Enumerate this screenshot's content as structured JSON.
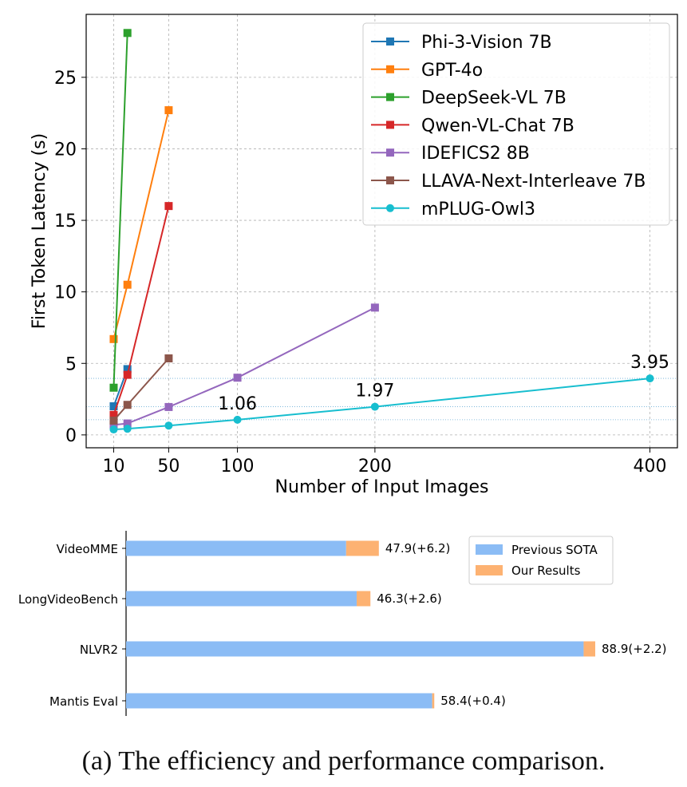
{
  "caption": "(a) The efficiency and performance comparison.",
  "colors": {
    "phi": "#1f77b4",
    "gpt": "#ff7f0e",
    "deepseek": "#2ca02c",
    "qwen": "#d62728",
    "idefics": "#9467bd",
    "llava": "#8c564b",
    "mplug": "#17becf",
    "prev": "#8bbcf5",
    "ours": "#fdb272",
    "refline": "#6baed6",
    "grid": "#b0b0b0"
  },
  "chart_data": [
    {
      "type": "line",
      "title": "",
      "xlabel": "Number of Input Images",
      "ylabel": "First Token Latency (s)",
      "xlim": [
        -10,
        420
      ],
      "ylim": [
        -0.9,
        29.4
      ],
      "xticks": [
        10,
        50,
        100,
        200,
        400
      ],
      "yticks": [
        0,
        5,
        10,
        15,
        20,
        25
      ],
      "grid": true,
      "legend_position": "top-right",
      "series": [
        {
          "name": "Phi-3-Vision 7B",
          "marker": "square",
          "color_key": "phi",
          "x": [
            10,
            20
          ],
          "y": [
            2.0,
            4.6
          ]
        },
        {
          "name": "GPT-4o",
          "marker": "square",
          "color_key": "gpt",
          "x": [
            10,
            20,
            50
          ],
          "y": [
            6.7,
            10.5,
            22.7
          ]
        },
        {
          "name": "DeepSeek-VL 7B",
          "marker": "square",
          "color_key": "deepseek",
          "x": [
            10,
            20
          ],
          "y": [
            3.3,
            28.1
          ]
        },
        {
          "name": "Qwen-VL-Chat 7B",
          "marker": "square",
          "color_key": "qwen",
          "x": [
            10,
            20,
            50
          ],
          "y": [
            1.4,
            4.2,
            16.0
          ]
        },
        {
          "name": "IDEFICS2 8B",
          "marker": "square",
          "color_key": "idefics",
          "x": [
            10,
            20,
            50,
            100,
            200
          ],
          "y": [
            0.7,
            0.8,
            1.95,
            4.0,
            8.9
          ]
        },
        {
          "name": "LLAVA-Next-Interleave 7B",
          "marker": "square",
          "color_key": "llava",
          "x": [
            10,
            20,
            50
          ],
          "y": [
            1.0,
            2.1,
            5.35
          ]
        },
        {
          "name": "mPLUG-Owl3",
          "marker": "circle",
          "color_key": "mplug",
          "x": [
            10,
            20,
            50,
            100,
            200,
            400
          ],
          "y": [
            0.38,
            0.43,
            0.65,
            1.06,
            1.97,
            3.95
          ]
        }
      ],
      "annotations": [
        {
          "text": "1.06",
          "x": 100,
          "y": 1.06
        },
        {
          "text": "1.97",
          "x": 200,
          "y": 1.97
        },
        {
          "text": "3.95",
          "x": 400,
          "y": 3.95
        }
      ],
      "reference_lines_y": [
        1.06,
        1.97,
        3.95
      ]
    },
    {
      "type": "bar",
      "orientation": "horizontal",
      "stacked": true,
      "categories": [
        "VideoMME",
        "LongVideoBench",
        "NLVR2",
        "Mantis Eval"
      ],
      "legend_position": "top-right",
      "xlim": [
        0,
        95
      ],
      "series": [
        {
          "name": "Previous SOTA",
          "color_key": "prev",
          "values": [
            41.7,
            43.7,
            86.7,
            58.0
          ]
        },
        {
          "name": "Our Results",
          "color_key": "ours",
          "values": [
            6.2,
            2.6,
            2.2,
            0.4
          ]
        }
      ],
      "data_labels": [
        "47.9(+6.2)",
        "46.3(+2.6)",
        "88.9(+2.2)",
        "58.4(+0.4)"
      ]
    }
  ]
}
